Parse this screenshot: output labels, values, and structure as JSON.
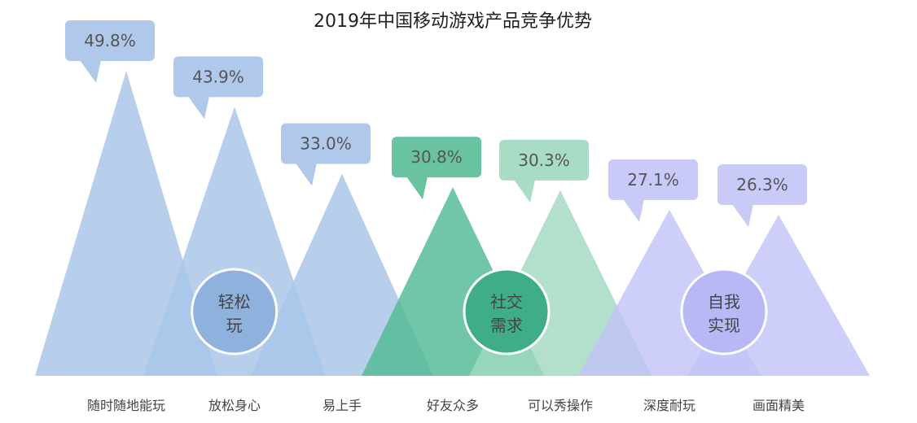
{
  "chart_data": {
    "type": "bar",
    "title": "2019年中国移动游戏产品竞争优势",
    "xlabel": "",
    "ylabel": "",
    "ylim": [
      0,
      60
    ],
    "unit": "%",
    "categories": [
      "随时随地能玩",
      "放松身心",
      "易上手",
      "好友众多",
      "可以秀操作",
      "深度耐玩",
      "画面精美"
    ],
    "values": [
      49.8,
      43.9,
      33.0,
      30.8,
      30.3,
      27.1,
      26.3
    ],
    "value_labels": [
      "49.8%",
      "43.9%",
      "33.0%",
      "30.8%",
      "30.3%",
      "27.1%",
      "26.3%"
    ],
    "groups": [
      {
        "line1": "轻松",
        "line2": "玩",
        "members": [
          0,
          1,
          2
        ],
        "color": "#8FB1DE",
        "bar_color": "#A8C4E8",
        "bubble_color": "#B0C9EA"
      },
      {
        "line1": "社交",
        "line2": "需求",
        "members": [
          3,
          4
        ],
        "color": "#3FAE86",
        "bar_color": "#52BA94",
        "bubble_color": "#69C3A0"
      },
      {
        "line1": "自我",
        "line2": "实现",
        "members": [
          5,
          6
        ],
        "color": "#B7B8F5",
        "bar_color": "#C2C3F8",
        "bubble_color": "#C9CAF7"
      }
    ],
    "bar_colors": [
      "#A8C4E8",
      "#A8C4E8",
      "#A8C4E8",
      "#52BA94",
      "#A1D9C1",
      "#C2C3F8",
      "#C2C3F8"
    ],
    "bubble_colors": [
      "#B0C9EA",
      "#B0C9EA",
      "#B0C9EA",
      "#69C3A0",
      "#A9DCC5",
      "#C9CAF7",
      "#C9CAF7"
    ],
    "legend": "none",
    "grid": false
  }
}
